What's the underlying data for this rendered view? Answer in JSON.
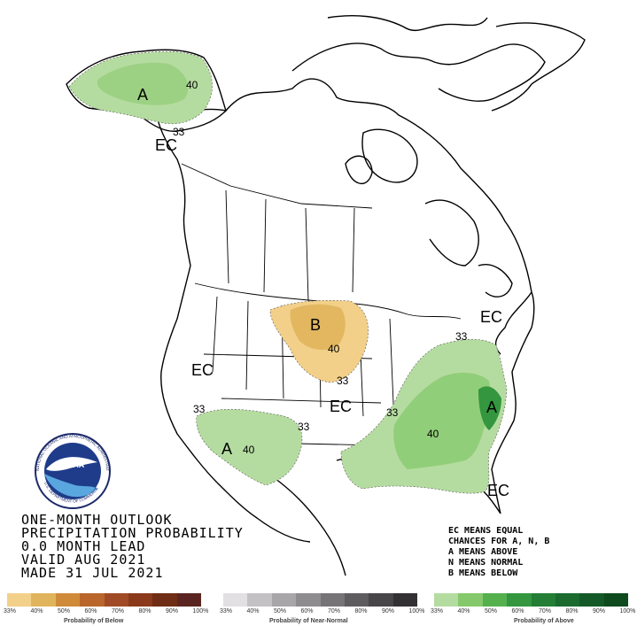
{
  "title": {
    "line1": "ONE-MONTH OUTLOOK",
    "line2": "PRECIPITATION PROBABILITY",
    "line3": "0.0 MONTH LEAD",
    "line4": "VALID AUG 2021",
    "line5": "MADE 31 JUL 2021"
  },
  "legend_note": {
    "line1": "EC MEANS EQUAL",
    "line2": "CHANCES FOR A, N, B",
    "line3": "A MEANS ABOVE",
    "line4": "N MEANS NORMAL",
    "line5": "B MEANS BELOW"
  },
  "map_labels": {
    "alaska_category": "A",
    "alaska_contour_40": "40",
    "alaska_contour_33": "33",
    "alaska_ec": "EC",
    "plains_category": "B",
    "plains_contour_40": "40",
    "plains_contour_33": "33",
    "west_ec": "EC",
    "central_ec": "EC",
    "northeast_ec": "EC",
    "southwest_category": "A",
    "southwest_contour_40": "40",
    "southwest_contour_33a": "33",
    "southwest_contour_33b": "33",
    "southeast_category": "A",
    "southeast_contour_40": "40",
    "southeast_contour_33a": "33",
    "southeast_contour_33b": "33",
    "florida_ec": "EC"
  },
  "logo": {
    "text": "NOAA",
    "ring_text": "NATIONAL OCEANIC AND ATMOSPHERIC ADMINISTRATION",
    "ring_text_bottom": "U.S. DEPARTMENT OF COMMERCE"
  },
  "legend_bars": {
    "below": {
      "title": "Probability of Below",
      "ticks": [
        "33%",
        "40%",
        "50%",
        "60%",
        "70%",
        "80%",
        "90%",
        "100%"
      ],
      "colors": [
        "#f2d089",
        "#e0b45c",
        "#cf8b3a",
        "#b9652c",
        "#a14b26",
        "#8a3a1a",
        "#6e2d14",
        "#5a2520"
      ]
    },
    "normal": {
      "title": "Probability of Near-Normal",
      "ticks": [
        "33%",
        "40%",
        "50%",
        "60%",
        "70%",
        "80%",
        "90%",
        "100%"
      ],
      "colors": [
        "#e3e0e3",
        "#c4c1c4",
        "#a9a6a9",
        "#8f8c8f",
        "#777477",
        "#5f5c5f",
        "#484648",
        "#333133"
      ]
    },
    "above": {
      "title": "Probability of Above",
      "ticks": [
        "33%",
        "40%",
        "50%",
        "60%",
        "70%",
        "80%",
        "90%",
        "100%"
      ],
      "colors": [
        "#b5dca0",
        "#86c96c",
        "#55b04e",
        "#34963f",
        "#247e36",
        "#1b6b2f",
        "#145a28",
        "#0e4a1e"
      ]
    }
  }
}
